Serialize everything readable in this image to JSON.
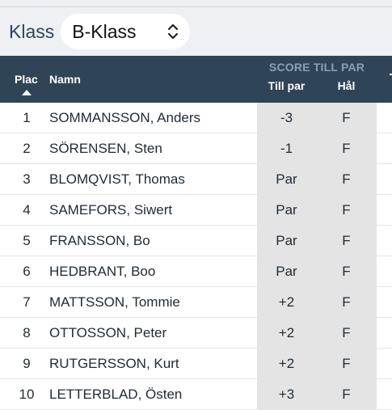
{
  "filter": {
    "label": "Klass",
    "selected": "B-Klass"
  },
  "table": {
    "columns": {
      "plac": "Plac",
      "name": "Namn",
      "group": "SCORE TILL PAR",
      "till_par": "Till par",
      "hal": "Hål"
    },
    "rows": [
      {
        "plac": "1",
        "name": "SOMMANSSON, Anders",
        "till_par": "-3",
        "hal": "F"
      },
      {
        "plac": "2",
        "name": "SÖRENSEN, Sten",
        "till_par": "-1",
        "hal": "F"
      },
      {
        "plac": "3",
        "name": "BLOMQVIST, Thomas",
        "till_par": "Par",
        "hal": "F"
      },
      {
        "plac": "4",
        "name": "SAMEFORS, Siwert",
        "till_par": "Par",
        "hal": "F"
      },
      {
        "plac": "5",
        "name": "FRANSSON, Bo",
        "till_par": "Par",
        "hal": "F"
      },
      {
        "plac": "6",
        "name": "HEDBRANT, Boo",
        "till_par": "Par",
        "hal": "F"
      },
      {
        "plac": "7",
        "name": "MATTSSON, Tommie",
        "till_par": "+2",
        "hal": "F"
      },
      {
        "plac": "8",
        "name": "OTTOSSON, Peter",
        "till_par": "+2",
        "hal": "F"
      },
      {
        "plac": "9",
        "name": "RUTGERSSON, Kurt",
        "till_par": "+2",
        "hal": "F"
      },
      {
        "plac": "10",
        "name": "LETTERBLAD, Östen",
        "till_par": "+3",
        "hal": "F"
      }
    ]
  },
  "icons": {
    "select": "chevron-up-down-icon",
    "sort": "sort-ascending-icon"
  },
  "colors": {
    "header": "#2f4557",
    "score_column": "#e4e4e4",
    "group_heading": "#8aa0b6"
  }
}
